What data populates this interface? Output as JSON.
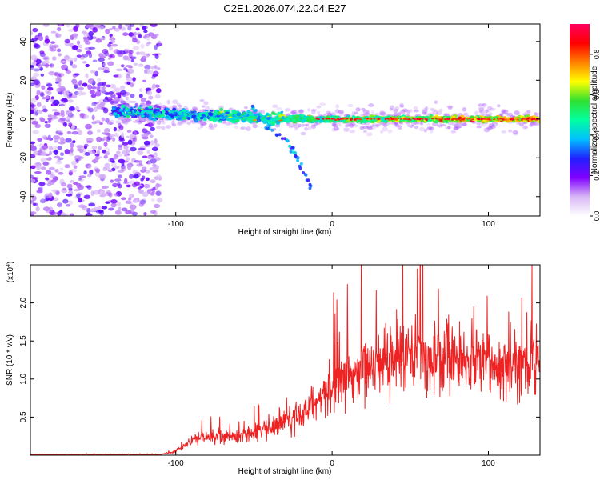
{
  "title": "C2E1.2026.074.22.04.E27",
  "chart_data": [
    {
      "type": "heatmap",
      "name": "spectrogram",
      "xlabel": "Height of straight line (km)",
      "ylabel": "Frequency (Hz)",
      "xlim": [
        -193,
        133
      ],
      "ylim": [
        -50,
        49
      ],
      "xticks": [
        {
          "value": -100,
          "label": "-100"
        },
        {
          "value": 0,
          "label": "0"
        },
        {
          "value": 100,
          "label": "100"
        }
      ],
      "yticks": [
        {
          "value": -40,
          "label": "-40"
        },
        {
          "value": -20,
          "label": "-20"
        },
        {
          "value": 0,
          "label": "0"
        },
        {
          "value": 20,
          "label": "20"
        },
        {
          "value": 40,
          "label": "40"
        }
      ],
      "colorbar": {
        "label": "Normalized spectral amplitude",
        "range": [
          0,
          0.95
        ],
        "ticks": [
          {
            "value": 0.0,
            "label": "0.0"
          },
          {
            "value": 0.2,
            "label": "0.2"
          },
          {
            "value": 0.4,
            "label": "0.4"
          },
          {
            "value": 0.6,
            "label": "0.6"
          },
          {
            "value": 0.8,
            "label": "0.8"
          }
        ],
        "colors": [
          "#ffffff",
          "#d8b8f5",
          "#8000ff",
          "#2020ff",
          "#00c0ff",
          "#00ffa0",
          "#30e030",
          "#ffff00",
          "#ff8000",
          "#ff0000",
          "#ff0060"
        ]
      },
      "features": {
        "noise_region": [
          -193,
          -110
        ],
        "signal_start": -140,
        "signal_end": 133,
        "signal_frequency_hz": 0,
        "branch": [
          [
            -52,
            8
          ],
          [
            -42,
            -4
          ],
          [
            -28,
            -12
          ],
          [
            -22,
            -20
          ],
          [
            -14,
            -34
          ]
        ]
      }
    },
    {
      "type": "line",
      "name": "snr",
      "xlabel": "Height of straight line (km)",
      "ylabel": "SNR (10 * v/v)",
      "y_multiplier": "(x10",
      "y_multiplier_exp": "4",
      "y_multiplier_close": ")",
      "xlim": [
        -193,
        133
      ],
      "ylim": [
        0,
        2.5
      ],
      "xticks": [
        {
          "value": -100,
          "label": "-100"
        },
        {
          "value": 0,
          "label": "0"
        },
        {
          "value": 100,
          "label": "100"
        }
      ],
      "yticks": [
        {
          "value": 0.5,
          "label": "0.5"
        },
        {
          "value": 1.0,
          "label": "1.0"
        },
        {
          "value": 1.5,
          "label": "1.5"
        },
        {
          "value": 2.0,
          "label": "2.0"
        }
      ],
      "color": "#ee2222",
      "series": [
        {
          "name": "SNR",
          "x": [
            -193,
            -110,
            -100,
            -90,
            -80,
            -60,
            -40,
            -30,
            -20,
            -10,
            0,
            10,
            20,
            30,
            40,
            50,
            60,
            80,
            100,
            120,
            133
          ],
          "y": [
            0.01,
            0.01,
            0.05,
            0.2,
            0.25,
            0.25,
            0.35,
            0.45,
            0.55,
            0.7,
            0.9,
            1.05,
            1.15,
            1.25,
            1.3,
            1.35,
            1.3,
            1.25,
            1.2,
            1.2,
            1.25
          ]
        }
      ]
    }
  ]
}
